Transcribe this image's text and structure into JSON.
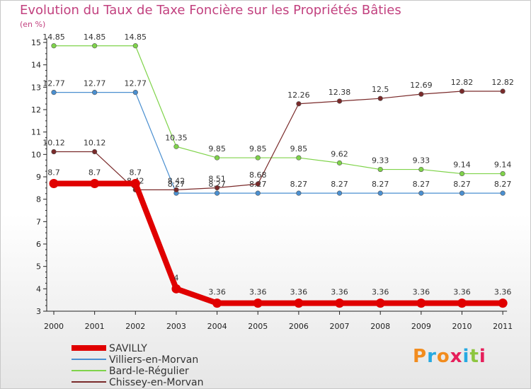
{
  "title": "Evolution du Taux de Taxe Foncière sur les Propriétés Bâties",
  "unit": "(en %)",
  "logo": {
    "text": "Proxiti",
    "colors": [
      "#f28c1e",
      "#27a9e1",
      "#f28c1e",
      "#e61f5b",
      "#27a9e1",
      "#8dc63f",
      "#e61f5b"
    ]
  },
  "chart_data": {
    "type": "line",
    "x": [
      "2000",
      "2001",
      "2002",
      "2003",
      "2004",
      "2005",
      "2006",
      "2007",
      "2008",
      "2009",
      "2010",
      "2011"
    ],
    "yticks": [
      3,
      4,
      5,
      6,
      7,
      8,
      9,
      10,
      11,
      12,
      13,
      14,
      15
    ],
    "ylim": [
      3,
      15
    ],
    "grid": false,
    "legend_position": "bottom-left",
    "series": [
      {
        "name": "SAVILLY",
        "color": "#e00000",
        "values": [
          8.7,
          8.7,
          8.7,
          4,
          3.36,
          3.36,
          3.36,
          3.36,
          3.36,
          3.36,
          3.36,
          3.36
        ],
        "labels": [
          "8.7",
          "8.7",
          "8.7",
          "4",
          "3.36",
          "3.36",
          "3.36",
          "3.36",
          "3.36",
          "3.36",
          "3.36",
          "3.36"
        ]
      },
      {
        "name": "Villiers-en-Morvan",
        "color": "#4a8fd0",
        "values": [
          12.77,
          12.77,
          12.77,
          8.27,
          8.27,
          8.27,
          8.27,
          8.27,
          8.27,
          8.27,
          8.27,
          8.27
        ],
        "labels": [
          "12.77",
          "12.77",
          "12.77",
          "8.27",
          "8.27",
          "8.27",
          "8.27",
          "8.27",
          "8.27",
          "8.27",
          "8.27",
          "8.27"
        ]
      },
      {
        "name": "Bard-le-Régulier",
        "color": "#7fd34a",
        "values": [
          14.85,
          14.85,
          14.85,
          10.35,
          9.85,
          9.85,
          9.85,
          9.62,
          9.33,
          9.33,
          9.14,
          9.14
        ],
        "labels": [
          "14.85",
          "14.85",
          "14.85",
          "10.35",
          "9.85",
          "9.85",
          "9.85",
          "9.62",
          "9.33",
          "9.33",
          "9.14",
          "9.14"
        ]
      },
      {
        "name": "Chissey-en-Morvan",
        "color": "#7a2a2a",
        "values": [
          10.12,
          10.12,
          8.42,
          8.42,
          8.51,
          8.68,
          12.26,
          12.38,
          12.5,
          12.69,
          12.82,
          12.82
        ],
        "labels": [
          "10.12",
          "10.12",
          "8.42",
          "8.42",
          "8.51",
          "8.68",
          "12.26",
          "12.38",
          "12.5",
          "12.69",
          "12.82",
          "12.82"
        ]
      }
    ]
  }
}
